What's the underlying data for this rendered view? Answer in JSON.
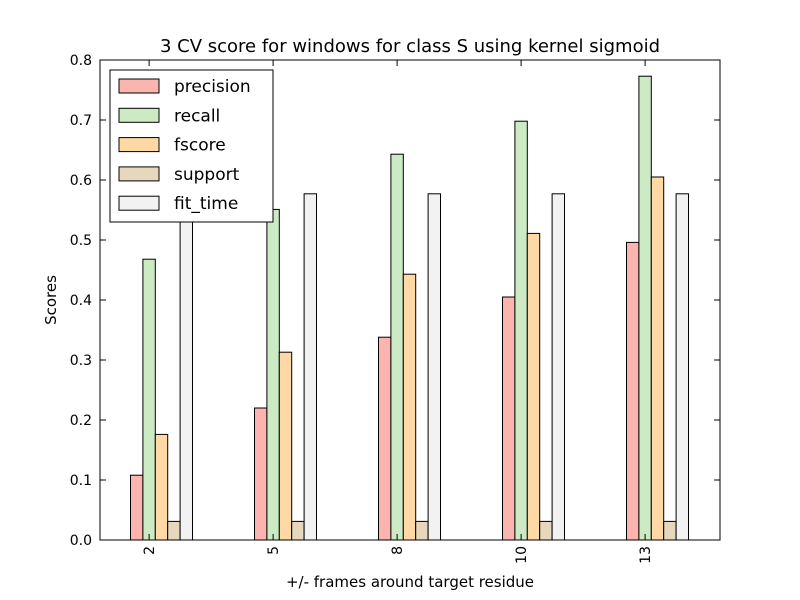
{
  "chart_data": {
    "type": "bar",
    "title": "3 CV score for windows for class S using kernel sigmoid",
    "xlabel": "+/- frames around target residue",
    "ylabel": "Scores",
    "categories": [
      "2",
      "5",
      "8",
      "10",
      "13"
    ],
    "ylim": [
      0,
      0.8
    ],
    "yticks": [
      "0.0",
      "0.1",
      "0.2",
      "0.3",
      "0.4",
      "0.5",
      "0.6",
      "0.7",
      "0.8"
    ],
    "legend_position": "top-left",
    "grid": false,
    "series": [
      {
        "name": "precision",
        "color": "#fbb4ae",
        "values": [
          0.108,
          0.22,
          0.338,
          0.405,
          0.496
        ]
      },
      {
        "name": "recall",
        "color": "#ccebc5",
        "values": [
          0.468,
          0.551,
          0.643,
          0.698,
          0.773
        ]
      },
      {
        "name": "fscore",
        "color": "#fed9a6",
        "values": [
          0.176,
          0.313,
          0.443,
          0.511,
          0.605
        ]
      },
      {
        "name": "support",
        "color": "#e5d8bd",
        "values": [
          0.031,
          0.031,
          0.031,
          0.031,
          0.031
        ]
      },
      {
        "name": "fit_time",
        "color": "#f2f2f2",
        "values": [
          0.577,
          0.577,
          0.577,
          0.577,
          0.577
        ]
      }
    ]
  }
}
